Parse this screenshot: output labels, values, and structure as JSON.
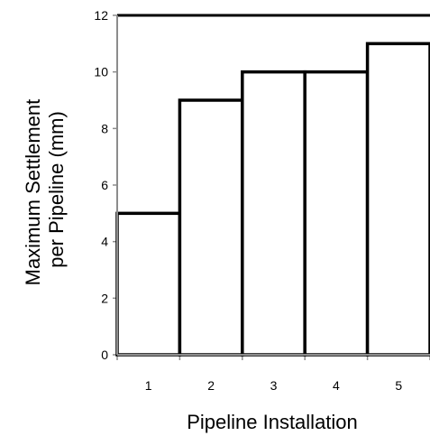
{
  "chart_data": {
    "type": "bar",
    "categories": [
      "1",
      "2",
      "3",
      "4",
      "5"
    ],
    "values": [
      5,
      9,
      10,
      10,
      11
    ],
    "title": "",
    "xlabel": "Pipeline Installation",
    "ylabel_lines": [
      "Maximum Settlement",
      "per Pipeline (mm)"
    ],
    "ylim": [
      0,
      12
    ],
    "yticks": [
      0,
      2,
      4,
      6,
      8,
      10,
      12
    ],
    "grid": false,
    "legend": "none",
    "bar_fill": "#ffffff",
    "bar_stroke": "#000000",
    "axis_color": "#8c8c8c"
  }
}
